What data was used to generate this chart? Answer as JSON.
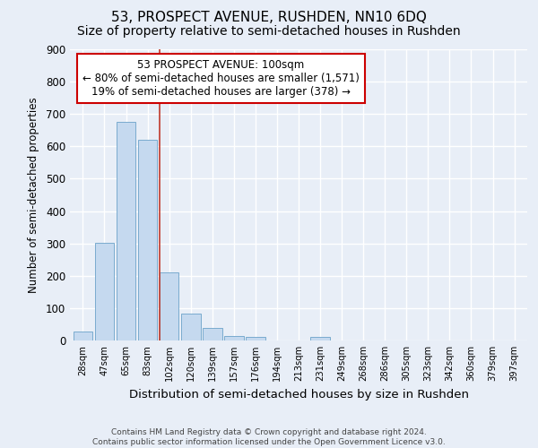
{
  "title": "53, PROSPECT AVENUE, RUSHDEN, NN10 6DQ",
  "subtitle": "Size of property relative to semi-detached houses in Rushden",
  "xlabel": "Distribution of semi-detached houses by size in Rushden",
  "ylabel": "Number of semi-detached properties",
  "categories": [
    "28sqm",
    "47sqm",
    "65sqm",
    "83sqm",
    "102sqm",
    "120sqm",
    "139sqm",
    "157sqm",
    "176sqm",
    "194sqm",
    "213sqm",
    "231sqm",
    "249sqm",
    "268sqm",
    "286sqm",
    "305sqm",
    "323sqm",
    "342sqm",
    "360sqm",
    "379sqm",
    "397sqm"
  ],
  "values": [
    28,
    302,
    675,
    620,
    210,
    83,
    40,
    15,
    12,
    0,
    0,
    10,
    0,
    0,
    0,
    0,
    0,
    0,
    0,
    0,
    0
  ],
  "bar_color": "#c5d9ef",
  "bar_edge_color": "#7aabce",
  "highlight_index": 4,
  "highlight_line_color": "#c0392b",
  "annotation_title": "53 PROSPECT AVENUE: 100sqm",
  "annotation_line1": "← 80% of semi-detached houses are smaller (1,571)",
  "annotation_line2": "19% of semi-detached houses are larger (378) →",
  "annotation_box_color": "#cc0000",
  "ylim": [
    0,
    900
  ],
  "yticks": [
    0,
    100,
    200,
    300,
    400,
    500,
    600,
    700,
    800,
    900
  ],
  "footer_line1": "Contains HM Land Registry data © Crown copyright and database right 2024.",
  "footer_line2": "Contains public sector information licensed under the Open Government Licence v3.0.",
  "background_color": "#e8eef7",
  "plot_bg_color": "#e8eef7",
  "grid_color": "#ffffff",
  "title_fontsize": 11,
  "subtitle_fontsize": 10,
  "annotation_fontsize": 8.5
}
